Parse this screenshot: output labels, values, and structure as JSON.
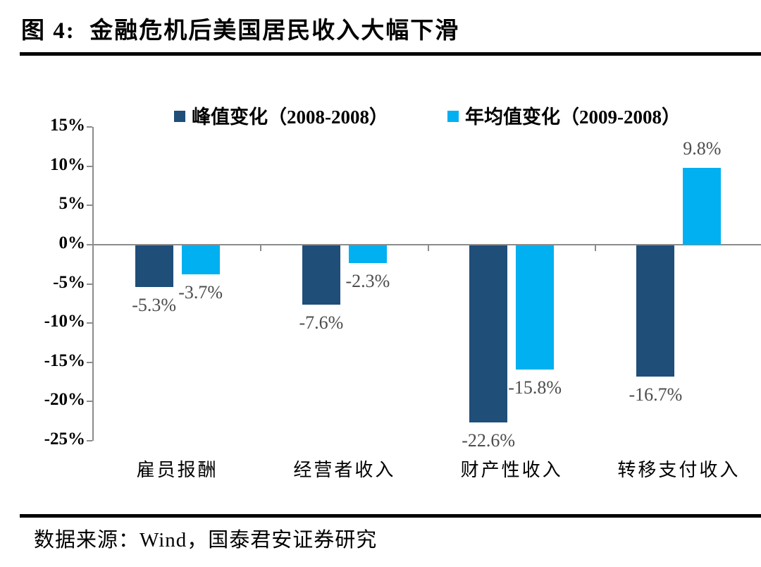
{
  "header": {
    "title": "图 4:  金融危机后美国居民收入大幅下滑"
  },
  "source": {
    "label": "数据来源：Wind，国泰君安证券研究"
  },
  "chart_data": {
    "type": "bar",
    "title": "金融危机后美国居民收入大幅下滑",
    "categories": [
      "雇员报酬",
      "经营者收入",
      "财产性收入",
      "转移支付收入"
    ],
    "series": [
      {
        "name": "峰值变化（2008-2008）",
        "color": "#1F4E79",
        "values": [
          -5.3,
          -7.6,
          -22.6,
          -16.7
        ],
        "labels": [
          "-5.3%",
          "-7.6%",
          "-22.6%",
          "-16.7%"
        ]
      },
      {
        "name": "年均值变化（2009-2008）",
        "color": "#00B0F0",
        "values": [
          -3.7,
          -2.3,
          -15.8,
          9.8
        ],
        "labels": [
          "-3.7%",
          "-2.3%",
          "-15.8%",
          "9.8%"
        ]
      }
    ],
    "ylim": [
      -25,
      15
    ],
    "yticks": [
      {
        "value": 15,
        "label": "15%"
      },
      {
        "value": 10,
        "label": "10%"
      },
      {
        "value": 5,
        "label": "5%"
      },
      {
        "value": 0,
        "label": "0%"
      },
      {
        "value": -5,
        "label": "-5%"
      },
      {
        "value": -10,
        "label": "-10%"
      },
      {
        "value": -15,
        "label": "-15%"
      },
      {
        "value": -20,
        "label": "-20%"
      },
      {
        "value": -25,
        "label": "-25%"
      }
    ],
    "grid": false,
    "legend_position": "top",
    "axis_color": "#8C8C8C",
    "value_label_color": "#4D4D4D"
  }
}
